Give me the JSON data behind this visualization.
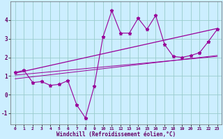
{
  "xlabel": "Windchill (Refroidissement éolien,°C)",
  "bg_color": "#cceeff",
  "line_color": "#990099",
  "grid_color": "#99cccc",
  "xlim": [
    -0.5,
    23.5
  ],
  "ylim": [
    -1.6,
    5.0
  ],
  "xticks": [
    0,
    1,
    2,
    3,
    4,
    5,
    6,
    7,
    8,
    9,
    10,
    11,
    12,
    13,
    14,
    15,
    16,
    17,
    18,
    19,
    20,
    21,
    22,
    23
  ],
  "yticks": [
    -1,
    0,
    1,
    2,
    3,
    4
  ],
  "scatter_x": [
    0,
    1,
    2,
    3,
    4,
    5,
    6,
    7,
    8,
    9,
    10,
    11,
    12,
    13,
    14,
    15,
    16,
    17,
    18,
    19,
    20,
    21,
    22,
    23
  ],
  "scatter_y": [
    1.2,
    1.3,
    0.65,
    0.7,
    0.5,
    0.55,
    0.75,
    -0.55,
    -1.25,
    0.45,
    3.1,
    4.5,
    3.3,
    3.3,
    4.1,
    3.5,
    4.25,
    2.7,
    2.05,
    2.0,
    2.1,
    2.25,
    2.85,
    3.5
  ],
  "line1_x": [
    0,
    23
  ],
  "line1_y": [
    1.15,
    3.55
  ],
  "line2_x": [
    0,
    23
  ],
  "line2_y": [
    1.05,
    2.05
  ],
  "line3_x": [
    0,
    23
  ],
  "line3_y": [
    0.85,
    2.1
  ]
}
